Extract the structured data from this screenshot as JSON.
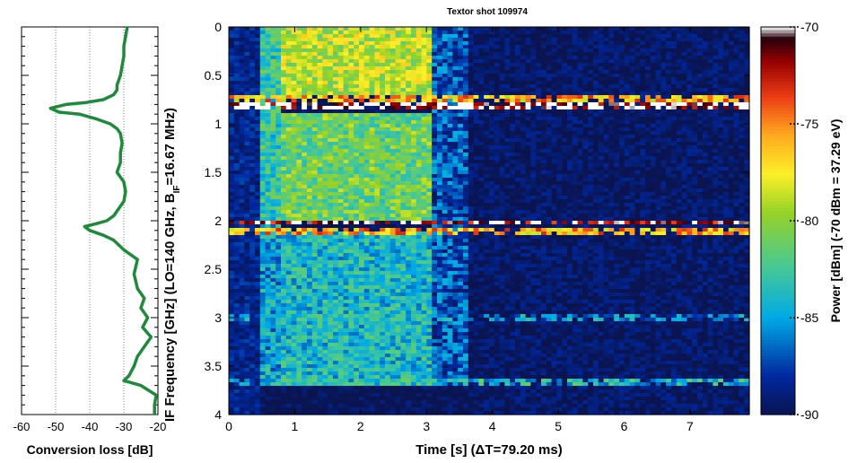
{
  "chart_data": [
    {
      "type": "line",
      "panel": "conversion-loss",
      "xlabel": "Conversion loss [dB]",
      "xlim": [
        -60,
        -20
      ],
      "ylim": [
        4,
        0
      ],
      "x_ticks": [
        "-60",
        "-50",
        "-40",
        "-30",
        "-20"
      ],
      "grid": true,
      "line_color": "#1f8a3c",
      "series": [
        {
          "x": [
            -29,
            -29.5,
            -30,
            -30,
            -30.5,
            -31,
            -31.5,
            -32,
            -32,
            -33,
            -36,
            -41,
            -47,
            -51.5,
            -49,
            -43,
            -38,
            -34,
            -32,
            -31,
            -30.5,
            -31,
            -31,
            -32,
            -30,
            -29.5,
            -30,
            -31,
            -32,
            -33,
            -35,
            -38,
            -41.5,
            -40,
            -36,
            -33,
            -30,
            -26,
            -27,
            -26,
            -24,
            -25,
            -23,
            -24.5,
            -22,
            -24,
            -26,
            -27,
            -28.5,
            -30,
            -25,
            -20.5,
            -21,
            -21
          ],
          "y": [
            0.0,
            0.1,
            0.2,
            0.3,
            0.4,
            0.5,
            0.55,
            0.6,
            0.65,
            0.7,
            0.75,
            0.78,
            0.8,
            0.84,
            0.88,
            0.9,
            0.95,
            1.0,
            1.05,
            1.1,
            1.2,
            1.3,
            1.4,
            1.5,
            1.6,
            1.7,
            1.8,
            1.85,
            1.9,
            1.95,
            2.0,
            2.03,
            2.06,
            2.1,
            2.15,
            2.2,
            2.3,
            2.4,
            2.55,
            2.7,
            2.8,
            2.9,
            3.0,
            3.1,
            3.2,
            3.3,
            3.4,
            3.5,
            3.6,
            3.65,
            3.7,
            3.8,
            3.9,
            4.0
          ]
        }
      ]
    },
    {
      "type": "heatmap",
      "panel": "spectrogram",
      "title": "Textor shot 109974",
      "xlabel": "Time [s] (ΔT=79.20 ms)",
      "ylabel": "IF Frequency [GHz] (LO=140 GHz, B",
      "ylabel_sub": "IF",
      "ylabel_tail": "=16.67 MHz)",
      "xlim": [
        0,
        7.9
      ],
      "ylim": [
        4,
        0
      ],
      "x_ticks": [
        "0",
        "1",
        "2",
        "3",
        "4",
        "5",
        "6",
        "7"
      ],
      "y_ticks": [
        "0",
        "0.5",
        "1",
        "1.5",
        "2",
        "2.5",
        "3",
        "3.5",
        "4"
      ],
      "regions": [
        {
          "t": [
            0.0,
            0.5
          ],
          "f": [
            0,
            4
          ],
          "level": -88.5
        },
        {
          "t": [
            0.5,
            0.8
          ],
          "f": [
            0,
            2.0
          ],
          "level": -83
        },
        {
          "t": [
            0.5,
            0.8
          ],
          "f": [
            2.0,
            3.7
          ],
          "level": -85
        },
        {
          "t": [
            0.8,
            3.1
          ],
          "f": [
            0,
            0.7
          ],
          "level": -79
        },
        {
          "t": [
            0.8,
            3.1
          ],
          "f": [
            0.9,
            2.0
          ],
          "level": -81
        },
        {
          "t": [
            0.8,
            3.1
          ],
          "f": [
            2.1,
            3.7
          ],
          "level": -84
        },
        {
          "t": [
            3.1,
            3.6
          ],
          "f": [
            0,
            3.7
          ],
          "level": -87
        },
        {
          "t": [
            3.6,
            7.9
          ],
          "f": [
            0,
            4
          ],
          "level": -89.5
        }
      ],
      "bands": [
        {
          "f": 0.82,
          "t": [
            0.0,
            7.9
          ],
          "level": -70
        },
        {
          "f": 0.74,
          "t": [
            0.0,
            7.9
          ],
          "level": -76
        },
        {
          "f": 2.02,
          "t": [
            0.0,
            7.9
          ],
          "level": -71
        },
        {
          "f": 2.1,
          "t": [
            0.0,
            7.9
          ],
          "level": -76
        },
        {
          "f": 3.68,
          "t": [
            0.0,
            7.9
          ],
          "level": -84
        },
        {
          "f": 3.0,
          "t": [
            0.0,
            7.9
          ],
          "level": -86
        }
      ],
      "colorbar": {
        "label": "Power [dBm] (-70 dBm = 37.29 eV)",
        "range": [
          -90,
          -70
        ],
        "ticks": [
          "-70",
          "-75",
          "-80",
          "-85",
          "-90"
        ]
      }
    }
  ]
}
